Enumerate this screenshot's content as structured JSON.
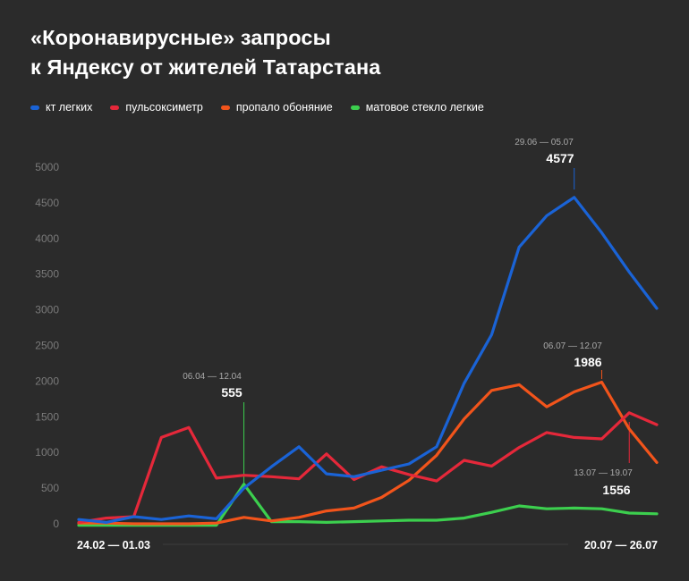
{
  "chart_data": {
    "type": "line",
    "title": "«Коронавирусные» запросы к Яндексу от жителей Татарстана",
    "title_lines": [
      "«Коронавирусные» запросы",
      "к Яндексу от жителей Татарстана"
    ],
    "xlabel": "",
    "ylabel": "",
    "ylim": [
      0,
      5000
    ],
    "yticks": [
      0,
      500,
      1000,
      1500,
      2000,
      2500,
      3000,
      3500,
      4000,
      4500,
      5000
    ],
    "ytick_labels": [
      "0",
      "500",
      "1000",
      "1500",
      "2000",
      "2500",
      "3000",
      "3500",
      "4000",
      "4500",
      "5000"
    ],
    "grid": false,
    "legend_position": "top-left",
    "x_range_labels": {
      "start": "24.02 — 01.03",
      "end": "20.07 — 26.07"
    },
    "series": [
      {
        "name": "кт легких",
        "color": "#1a63d6",
        "values": [
          60,
          20,
          100,
          60,
          110,
          70,
          500,
          800,
          1080,
          700,
          660,
          750,
          840,
          1080,
          1970,
          2650,
          3880,
          4320,
          4577,
          4080,
          3530,
          3020
        ]
      },
      {
        "name": "пульсоксиметр",
        "color": "#e5283a",
        "values": [
          20,
          80,
          100,
          1210,
          1350,
          640,
          680,
          660,
          630,
          980,
          620,
          800,
          690,
          600,
          890,
          810,
          1070,
          1280,
          1210,
          1190,
          1556,
          1390
        ]
      },
      {
        "name": "пропало обоняние",
        "color": "#f2541b",
        "values": [
          10,
          10,
          0,
          0,
          0,
          10,
          90,
          40,
          90,
          180,
          220,
          370,
          610,
          960,
          1470,
          1870,
          1950,
          1640,
          1850,
          1986,
          1330,
          860
        ]
      },
      {
        "name": "матовое стекло легкие",
        "color": "#3ccf4e",
        "values": [
          -20,
          -20,
          -20,
          -20,
          -20,
          -20,
          555,
          30,
          30,
          20,
          30,
          40,
          50,
          50,
          80,
          160,
          250,
          210,
          220,
          210,
          150,
          140
        ]
      }
    ],
    "annotations": [
      {
        "date": "06.04 — 12.04",
        "value": "555",
        "series": 3,
        "index": 6,
        "color": "#3ccf4e"
      },
      {
        "date": "29.06 — 05.07",
        "value": "4577",
        "series": 0,
        "index": 18,
        "color": "#1a63d6"
      },
      {
        "date": "06.07 — 12.07",
        "value": "1986",
        "series": 2,
        "index": 19,
        "color": "#f2541b"
      },
      {
        "date": "13.07 — 19.07",
        "value": "1556",
        "series": 1,
        "index": 20,
        "color": "#e5283a"
      }
    ]
  }
}
